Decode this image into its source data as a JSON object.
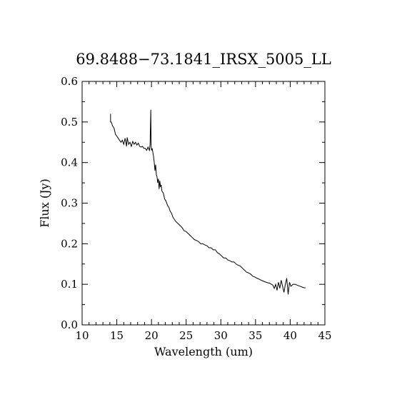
{
  "chart_data": {
    "type": "line",
    "title": "69.8488−73.1841_IRSX_5005_LL",
    "xlabel": "Wavelength (um)",
    "ylabel": "Flux (Jy)",
    "xlim": [
      10,
      45
    ],
    "ylim": [
      0.0,
      0.6
    ],
    "x_ticks": [
      10,
      15,
      20,
      25,
      30,
      35,
      40,
      45
    ],
    "x_tick_labels": [
      "10",
      "15",
      "20",
      "25",
      "30",
      "35",
      "40",
      "45"
    ],
    "y_ticks": [
      0.0,
      0.1,
      0.2,
      0.3,
      0.4,
      0.5,
      0.6
    ],
    "y_tick_labels": [
      "0.0",
      "0.1",
      "0.2",
      "0.3",
      "0.4",
      "0.5",
      "0.6"
    ],
    "x_minor_step": 1,
    "y_minor_step": 0.05,
    "grid": false,
    "series": [
      {
        "x": [
          14.1,
          14.1,
          14.2,
          14.4,
          14.6,
          14.8,
          15.0,
          15.2,
          15.4,
          15.6,
          15.8,
          16.0,
          16.2,
          16.4,
          16.5,
          16.7,
          16.9,
          17.1,
          17.3,
          17.5,
          17.7,
          17.9,
          18.1,
          18.3,
          18.5,
          18.7,
          18.9,
          19.1,
          19.3,
          19.5,
          19.7,
          19.8,
          19.9,
          19.95,
          20.0,
          20.1,
          20.2,
          20.3,
          20.4,
          20.5,
          20.6,
          20.7,
          20.8,
          20.9,
          21.0,
          21.1,
          21.2,
          21.3,
          21.4,
          21.5,
          21.7,
          21.9,
          22.1,
          22.3,
          22.5,
          22.7,
          22.9,
          23.1,
          23.3,
          23.5,
          23.8,
          24.1,
          24.4,
          24.7,
          25.0,
          25.3,
          25.6,
          25.9,
          26.2,
          26.5,
          26.8,
          27.1,
          27.4,
          27.7,
          28.0,
          28.3,
          28.6,
          28.9,
          29.2,
          29.5,
          29.8,
          30.1,
          30.4,
          30.7,
          31.0,
          31.3,
          31.6,
          31.9,
          32.2,
          32.5,
          32.8,
          33.1,
          33.4,
          33.7,
          34.0,
          34.3,
          34.6,
          34.9,
          35.2,
          35.5,
          35.8,
          36.1,
          36.4,
          36.7,
          37.0,
          37.3,
          37.5,
          37.7,
          37.9,
          38.1,
          38.3,
          38.5,
          38.7,
          38.9,
          39.1,
          39.3,
          39.5,
          39.7,
          39.9,
          40.1,
          40.4,
          40.7,
          41.0,
          41.3,
          41.6,
          41.9,
          42.2
        ],
        "y": [
          0.52,
          0.5,
          0.5,
          0.49,
          0.485,
          0.47,
          0.465,
          0.46,
          0.455,
          0.45,
          0.455,
          0.445,
          0.46,
          0.44,
          0.462,
          0.445,
          0.45,
          0.44,
          0.452,
          0.445,
          0.45,
          0.443,
          0.448,
          0.44,
          0.438,
          0.44,
          0.435,
          0.435,
          0.43,
          0.438,
          0.43,
          0.445,
          0.53,
          0.44,
          0.43,
          0.435,
          0.425,
          0.415,
          0.4,
          0.38,
          0.395,
          0.37,
          0.365,
          0.35,
          0.36,
          0.335,
          0.355,
          0.34,
          0.345,
          0.33,
          0.325,
          0.31,
          0.305,
          0.295,
          0.29,
          0.28,
          0.275,
          0.265,
          0.26,
          0.255,
          0.25,
          0.245,
          0.24,
          0.232,
          0.23,
          0.225,
          0.22,
          0.215,
          0.21,
          0.208,
          0.205,
          0.2,
          0.2,
          0.197,
          0.195,
          0.19,
          0.19,
          0.185,
          0.185,
          0.178,
          0.175,
          0.17,
          0.165,
          0.165,
          0.16,
          0.158,
          0.155,
          0.155,
          0.15,
          0.147,
          0.145,
          0.14,
          0.135,
          0.13,
          0.128,
          0.125,
          0.12,
          0.118,
          0.115,
          0.113,
          0.11,
          0.108,
          0.106,
          0.104,
          0.103,
          0.1,
          0.098,
          0.09,
          0.1,
          0.085,
          0.105,
          0.09,
          0.11,
          0.095,
          0.08,
          0.1,
          0.115,
          0.075,
          0.105,
          0.095,
          0.1,
          0.1,
          0.098,
          0.096,
          0.094,
          0.092,
          0.091
        ]
      }
    ]
  }
}
